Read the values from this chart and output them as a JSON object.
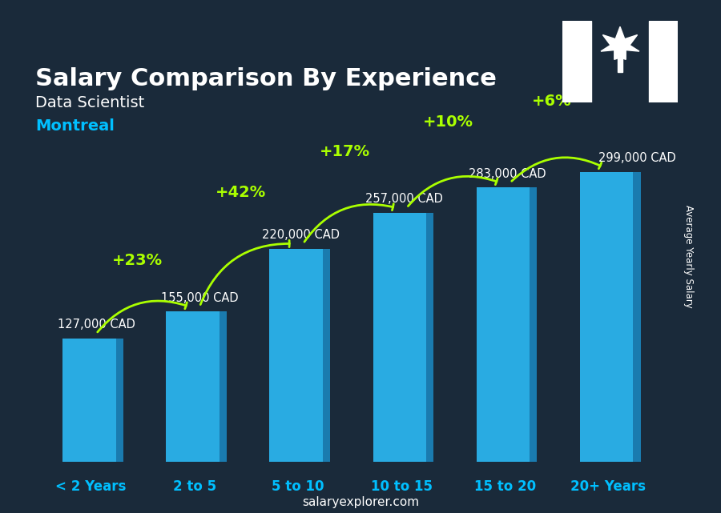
{
  "title": "Salary Comparison By Experience",
  "subtitle1": "Data Scientist",
  "subtitle2": "Montreal",
  "categories": [
    "< 2 Years",
    "2 to 5",
    "5 to 10",
    "10 to 15",
    "15 to 20",
    "20+ Years"
  ],
  "values": [
    127000,
    155000,
    220000,
    257000,
    283000,
    299000
  ],
  "labels": [
    "127,000 CAD",
    "155,000 CAD",
    "220,000 CAD",
    "257,000 CAD",
    "283,000 CAD",
    "299,000 CAD"
  ],
  "pct_changes": [
    "+23%",
    "+42%",
    "+17%",
    "+10%",
    "+6%"
  ],
  "bar_color_face": "#29ABE2",
  "bar_color_edge": "#1A7BAF",
  "background_color": "#1a2a3a",
  "title_color": "#ffffff",
  "subtitle1_color": "#ffffff",
  "subtitle2_color": "#00BFFF",
  "label_color": "#ffffff",
  "xtick_color": "#00BFFF",
  "pct_color": "#AAFF00",
  "arrow_color": "#AAFF00",
  "ylabel_text": "Average Yearly Salary",
  "footer_text": "salaryexplorer.com",
  "footer_bold": "salary",
  "ylim": [
    0,
    360000
  ]
}
